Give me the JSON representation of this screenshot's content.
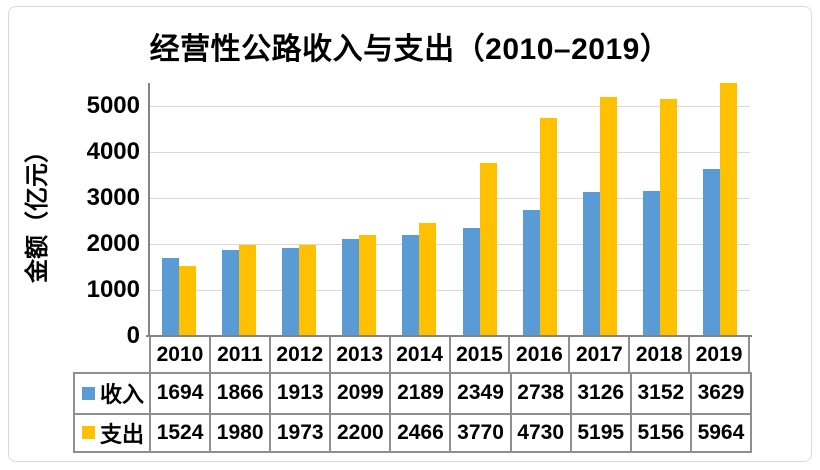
{
  "chart_data": {
    "type": "bar",
    "title": "经营性公路收入与支出（2010–2019）",
    "ylabel": "金额（亿元）",
    "xlabel": "",
    "categories": [
      "2010",
      "2011",
      "2012",
      "2013",
      "2014",
      "2015",
      "2016",
      "2017",
      "2018",
      "2019"
    ],
    "series": [
      {
        "name": "收入",
        "color": "#5B9BD5",
        "values": [
          1694,
          1866,
          1913,
          2099,
          2189,
          2349,
          2738,
          3126,
          3152,
          3629
        ]
      },
      {
        "name": "支出",
        "color": "#FFC000",
        "values": [
          1524,
          1980,
          1973,
          2200,
          2466,
          3770,
          4730,
          5195,
          5156,
          5964
        ]
      }
    ],
    "ylim": [
      0,
      5500
    ],
    "yticks": [
      0,
      1000,
      2000,
      3000,
      4000,
      5000
    ],
    "grid": "horizontal",
    "legend_position": "data-table-below",
    "note_overflow": "2019 支出 bar (5964) is clipped at plot top (axis max 5500)"
  },
  "colors": {
    "series_income": "#5B9BD5",
    "series_expense": "#FFC000",
    "gridline": "#d9d9d9",
    "axis": "#848484",
    "table_border": "#8f8f8f",
    "widget_border": "#d5dbe2"
  }
}
